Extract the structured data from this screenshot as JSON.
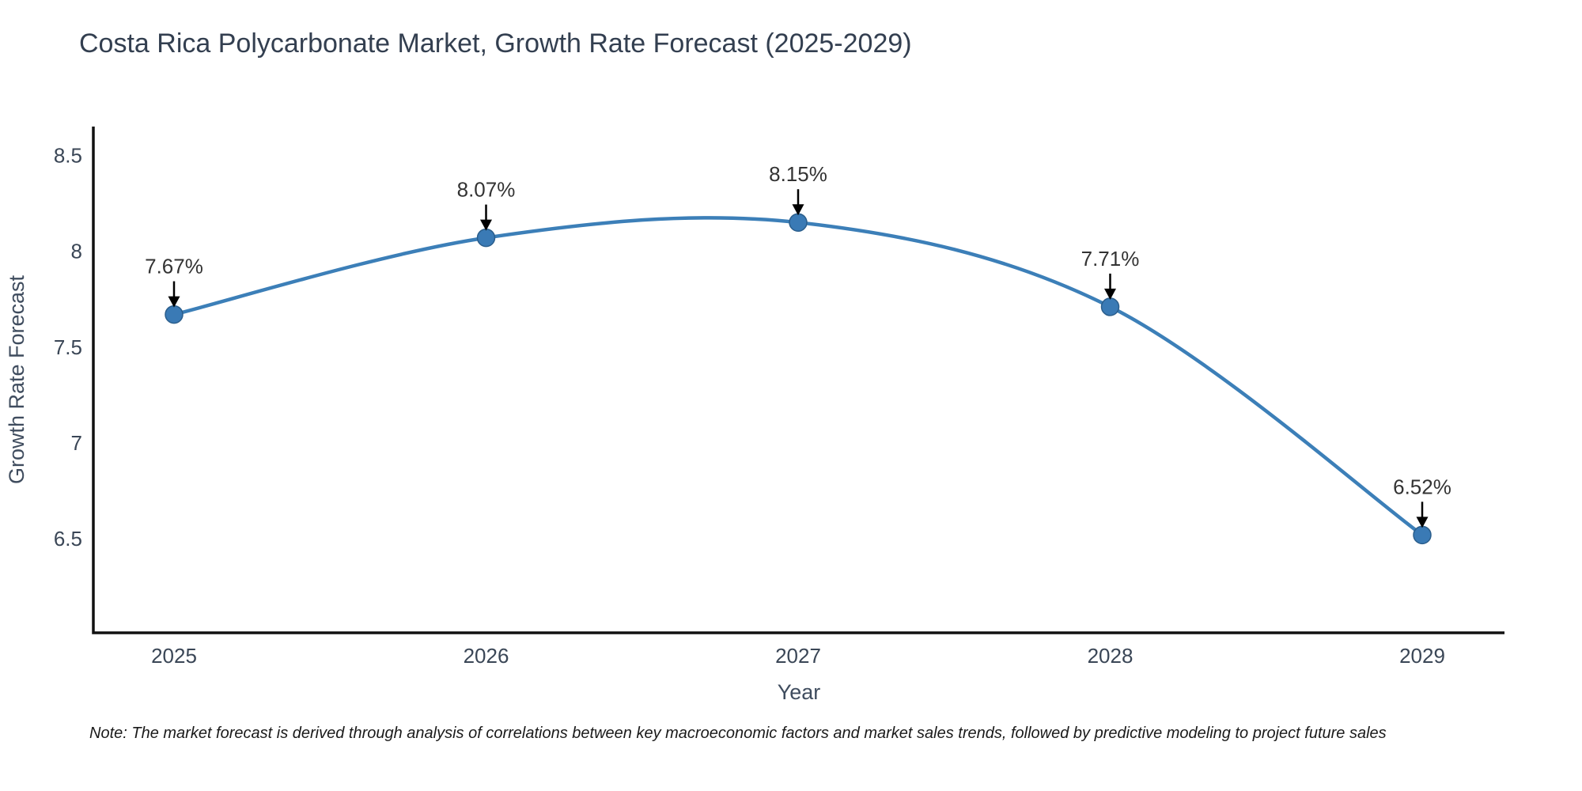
{
  "title": "Costa Rica Polycarbonate Market, Growth Rate Forecast (2025-2029)",
  "note": "Note: The market forecast is derived through analysis of correlations between key macroeconomic factors and market sales trends, followed by predictive modeling to project future sales",
  "chart_data": {
    "type": "line",
    "title": "Costa Rica Polycarbonate Market, Growth Rate Forecast (2025-2029)",
    "xlabel": "Year",
    "ylabel": "Growth Rate Forecast",
    "x": [
      "2025",
      "2026",
      "2027",
      "2028",
      "2029"
    ],
    "values": [
      7.67,
      8.07,
      8.15,
      7.71,
      6.52
    ],
    "point_labels": [
      "7.67%",
      "8.07%",
      "8.15%",
      "7.71%",
      "6.52%"
    ],
    "yticks": [
      "8.5",
      "8",
      "7.5",
      "7",
      "6.5"
    ],
    "ytick_values": [
      8.5,
      8,
      7.5,
      7,
      6.5
    ],
    "ylim": [
      6.01,
      8.65
    ],
    "grid": false,
    "legend": null,
    "smooth": true,
    "colors": {
      "line": "#3c7fb8",
      "marker_fill": "#3a7ab5",
      "marker_edge": "#2b5e8c",
      "axis": "#111111",
      "annotation_text": "#333333",
      "annotation_arrow": "#000000",
      "title_text": "#333f50",
      "tick_text": "#3a4656"
    }
  }
}
